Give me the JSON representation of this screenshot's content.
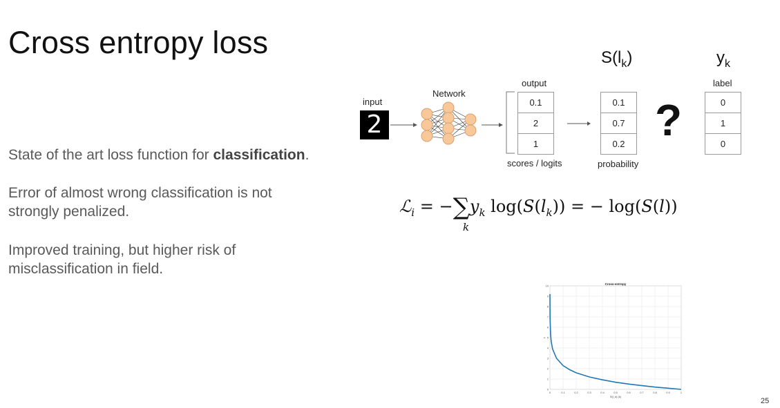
{
  "slide": {
    "title": "Cross entropy loss",
    "paragraphs": {
      "p1_before": "State of the art loss function for ",
      "p1_bold": "classification",
      "p1_after": ".",
      "p2": "Error of almost wrong classification is not strongly penalized.",
      "p3": "Improved training, but higher risk of misclassification in field."
    },
    "page_number": "25"
  },
  "diagram": {
    "input_label": "input",
    "input_digit": "2",
    "network_label": "Network",
    "output_label": "output",
    "output_values": [
      "0.1",
      "2",
      "1"
    ],
    "scores_label": "scores / logits",
    "softmax_header": "S(l",
    "softmax_header_sub": "k",
    "softmax_header_close": ")",
    "probability_values": [
      "0.1",
      "0.7",
      "0.2"
    ],
    "probability_label": "probability",
    "question_mark": "?",
    "label_header": "y",
    "label_header_sub": "k",
    "label_label": "label",
    "label_values": [
      "0",
      "1",
      "0"
    ]
  },
  "formula": {
    "text": "ℒi = −∑ yk log(S(lk)) = −log(S(l))"
  },
  "chart_data": {
    "type": "line",
    "title": "Cross-entropy",
    "xlabel": "S(l_k) (k)",
    "ylabel": "L",
    "xlim": [
      0,
      1
    ],
    "ylim": [
      0,
      10
    ],
    "grid": true,
    "x_ticks": [
      "0",
      "0.1",
      "0.2",
      "0.3",
      "0.4",
      "0.5",
      "0.6",
      "0.7",
      "0.8",
      "0.9",
      "1"
    ],
    "y_ticks": [
      "0",
      "1",
      "2",
      "3",
      "4",
      "5",
      "6",
      "7",
      "8",
      "9",
      "10"
    ],
    "series": [
      {
        "x": [
          0.0001,
          0.001,
          0.005,
          0.01,
          0.02,
          0.05,
          0.1,
          0.15,
          0.2,
          0.3,
          0.4,
          0.5,
          0.6,
          0.7,
          0.8,
          0.9,
          1.0
        ],
        "values": [
          9.2,
          6.9,
          5.3,
          4.6,
          3.9,
          3.0,
          2.3,
          1.9,
          1.6,
          1.2,
          0.92,
          0.69,
          0.51,
          0.36,
          0.22,
          0.11,
          0.0
        ],
        "color": "#1f77b4"
      }
    ]
  }
}
